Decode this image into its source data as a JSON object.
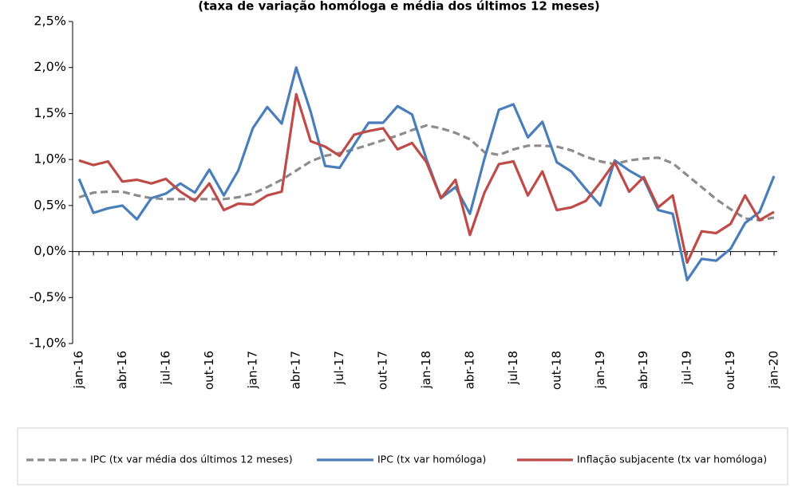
{
  "chart_data": {
    "type": "line",
    "title": "(taxa de variação homóloga e média dos últimos 12 meses)",
    "categories": [
      "jan-16",
      null,
      null,
      "abr-16",
      null,
      null,
      "jul-16",
      null,
      null,
      "out-16",
      null,
      null,
      "jan-17",
      null,
      null,
      "abr-17",
      null,
      null,
      "jul-17",
      null,
      null,
      "out-17",
      null,
      null,
      "jan-18",
      null,
      null,
      "abr-18",
      null,
      null,
      "jul-18",
      null,
      null,
      "out-18",
      null,
      null,
      "jan-19",
      null,
      null,
      "abr-19",
      null,
      null,
      "jul-19",
      null,
      null,
      "out-19",
      null,
      null,
      "jan-20"
    ],
    "series": [
      {
        "name": "IPC (tx var média dos últimos 12 meses)",
        "color": "#8c8c8c",
        "dashed": true,
        "values": [
          0.59,
          0.64,
          0.65,
          0.65,
          0.61,
          0.58,
          0.57,
          0.57,
          0.57,
          0.57,
          0.57,
          0.59,
          0.63,
          0.7,
          0.78,
          0.88,
          0.98,
          1.04,
          1.07,
          1.11,
          1.16,
          1.21,
          1.26,
          1.32,
          1.37,
          1.34,
          1.29,
          1.22,
          1.08,
          1.05,
          1.11,
          1.15,
          1.15,
          1.14,
          1.1,
          1.03,
          0.98,
          0.95,
          0.99,
          1.01,
          1.02,
          0.96,
          0.83,
          0.7,
          0.57,
          0.46,
          0.36,
          0.34,
          0.37
        ]
      },
      {
        "name": "IPC (tx var homóloga)",
        "color": "#4a7ebb",
        "dashed": false,
        "values": [
          0.79,
          0.42,
          0.47,
          0.5,
          0.35,
          0.58,
          0.63,
          0.74,
          0.64,
          0.89,
          0.61,
          0.88,
          1.34,
          1.57,
          1.39,
          2.0,
          1.52,
          0.93,
          0.91,
          1.16,
          1.4,
          1.4,
          1.58,
          1.49,
          1.0,
          0.58,
          0.7,
          0.41,
          1.01,
          1.54,
          1.6,
          1.24,
          1.41,
          0.97,
          0.87,
          0.68,
          0.5,
          0.99,
          0.88,
          0.79,
          0.45,
          0.41,
          -0.31,
          -0.08,
          -0.1,
          0.03,
          0.31,
          0.43,
          0.82
        ]
      },
      {
        "name": "Inflação subjacente (tx var homóloga)",
        "color": "#be4b48",
        "dashed": false,
        "values": [
          0.99,
          0.94,
          0.98,
          0.76,
          0.78,
          0.74,
          0.79,
          0.65,
          0.55,
          0.74,
          0.45,
          0.52,
          0.51,
          0.61,
          0.65,
          1.71,
          1.2,
          1.14,
          1.04,
          1.27,
          1.31,
          1.34,
          1.11,
          1.18,
          0.97,
          0.58,
          0.78,
          0.18,
          0.64,
          0.95,
          0.98,
          0.61,
          0.87,
          0.45,
          0.48,
          0.55,
          0.75,
          0.97,
          0.65,
          0.81,
          0.48,
          0.61,
          -0.12,
          0.22,
          0.2,
          0.3,
          0.61,
          0.34,
          0.43
        ]
      }
    ],
    "ylim": [
      -1.0,
      2.5
    ],
    "yticks": [
      {
        "value": -1.0,
        "label": "-1,0%"
      },
      {
        "value": -0.5,
        "label": "-0,5%"
      },
      {
        "value": 0,
        "label": "0,0%"
      },
      {
        "value": 0.5,
        "label": "0,5%"
      },
      {
        "value": 1.0,
        "label": "1,0%"
      },
      {
        "value": 1.5,
        "label": "1,5%"
      },
      {
        "value": 2.0,
        "label": "2,0%"
      },
      {
        "value": 2.5,
        "label": "2,5%"
      }
    ],
    "legend": "bottom"
  }
}
